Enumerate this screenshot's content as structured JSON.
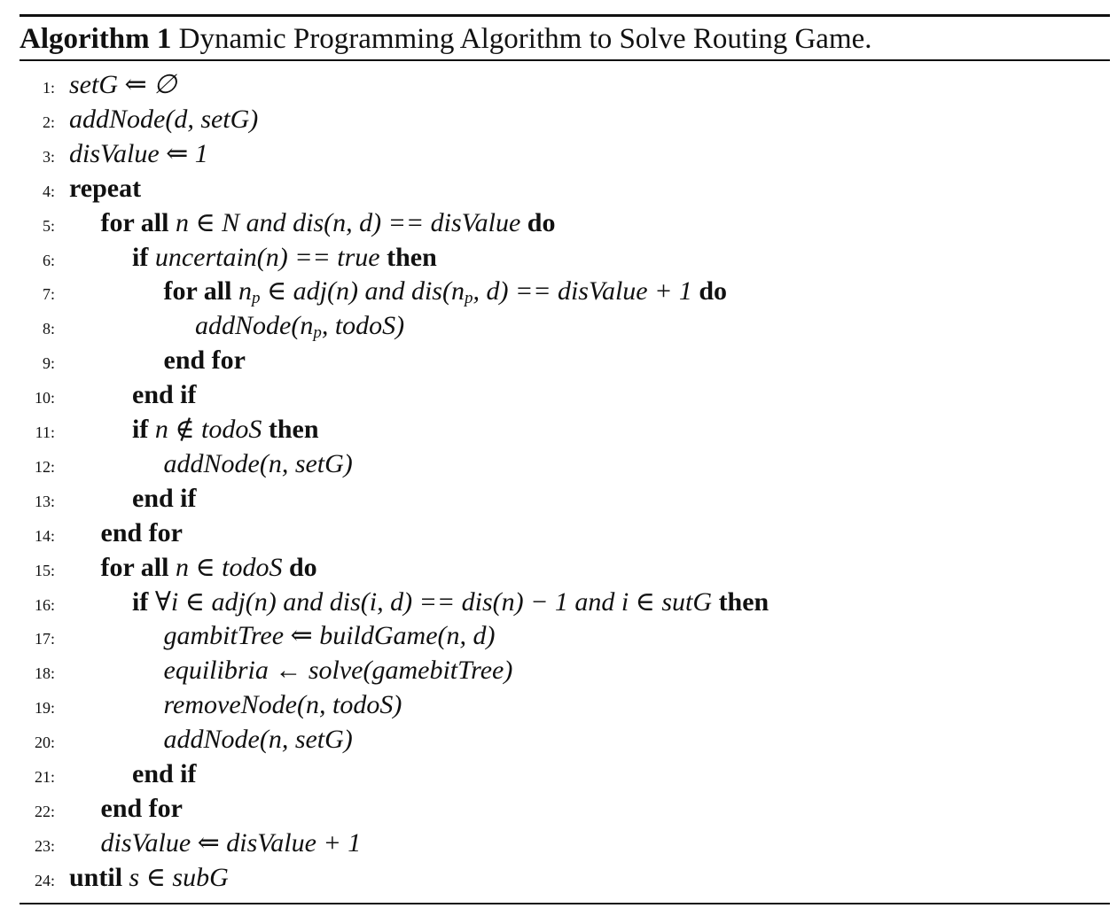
{
  "algorithm": {
    "label": "Algorithm 1",
    "title": "Dynamic Programming Algorithm to Solve Routing Game."
  },
  "lines": [
    {
      "num": "1:",
      "indent": 0,
      "parts": [
        {
          "t": "setG ⇐ ∅",
          "s": "m"
        }
      ]
    },
    {
      "num": "2:",
      "indent": 0,
      "parts": [
        {
          "t": "addNode(d, setG)",
          "s": "m"
        }
      ]
    },
    {
      "num": "3:",
      "indent": 0,
      "parts": [
        {
          "t": "disValue ⇐ 1",
          "s": "m"
        }
      ]
    },
    {
      "num": "4:",
      "indent": 0,
      "parts": [
        {
          "t": "repeat",
          "s": "kw"
        }
      ]
    },
    {
      "num": "5:",
      "indent": 1,
      "parts": [
        {
          "t": "for all",
          "s": "kw"
        },
        {
          "t": " n ∈ N  and  dis(n, d) == disValue ",
          "s": "m"
        },
        {
          "t": "do",
          "s": "kw"
        }
      ]
    },
    {
      "num": "6:",
      "indent": 2,
      "parts": [
        {
          "t": "if",
          "s": "kw"
        },
        {
          "t": " uncertain(n) == true ",
          "s": "m"
        },
        {
          "t": "then",
          "s": "kw"
        }
      ]
    },
    {
      "num": "7:",
      "indent": 3,
      "parts": [
        {
          "t": "for all",
          "s": "kw"
        },
        {
          "t": " n",
          "s": "m"
        },
        {
          "t": "p",
          "s": "sub"
        },
        {
          "t": " ∈ adj(n)  and  dis(n",
          "s": "m"
        },
        {
          "t": "p",
          "s": "sub"
        },
        {
          "t": ", d) == disValue + 1 ",
          "s": "m"
        },
        {
          "t": "do",
          "s": "kw"
        }
      ]
    },
    {
      "num": "8:",
      "indent": 4,
      "parts": [
        {
          "t": "addNode(n",
          "s": "m"
        },
        {
          "t": "p",
          "s": "sub"
        },
        {
          "t": ", todoS)",
          "s": "m"
        }
      ]
    },
    {
      "num": "9:",
      "indent": 3,
      "parts": [
        {
          "t": "end for",
          "s": "kw"
        }
      ]
    },
    {
      "num": "10:",
      "indent": 2,
      "parts": [
        {
          "t": "end if",
          "s": "kw"
        }
      ]
    },
    {
      "num": "11:",
      "indent": 2,
      "parts": [
        {
          "t": "if",
          "s": "kw"
        },
        {
          "t": " n ∉ todoS ",
          "s": "m"
        },
        {
          "t": "then",
          "s": "kw"
        }
      ]
    },
    {
      "num": "12:",
      "indent": 3,
      "parts": [
        {
          "t": "addNode(n, setG)",
          "s": "m"
        }
      ]
    },
    {
      "num": "13:",
      "indent": 2,
      "parts": [
        {
          "t": "end if",
          "s": "kw"
        }
      ]
    },
    {
      "num": "14:",
      "indent": 1,
      "parts": [
        {
          "t": "end for",
          "s": "kw"
        }
      ]
    },
    {
      "num": "15:",
      "indent": 1,
      "parts": [
        {
          "t": "for all",
          "s": "kw"
        },
        {
          "t": " n ∈ todoS ",
          "s": "m"
        },
        {
          "t": "do",
          "s": "kw"
        }
      ]
    },
    {
      "num": "16:",
      "indent": 2,
      "parts": [
        {
          "t": "if",
          "s": "kw"
        },
        {
          "t": " ∀i ∈ adj(n) and dis(i, d) == dis(n) − 1 and i ∈ sutG ",
          "s": "m"
        },
        {
          "t": "then",
          "s": "kw"
        }
      ]
    },
    {
      "num": "17:",
      "indent": 3,
      "parts": [
        {
          "t": "gambitTree ⇐ buildGame(n, d)",
          "s": "m"
        }
      ]
    },
    {
      "num": "18:",
      "indent": 3,
      "parts": [
        {
          "t": "equilibria ← solve(gamebitTree)",
          "s": "m"
        }
      ]
    },
    {
      "num": "19:",
      "indent": 3,
      "parts": [
        {
          "t": "removeNode(n, todoS)",
          "s": "m"
        }
      ]
    },
    {
      "num": "20:",
      "indent": 3,
      "parts": [
        {
          "t": "addNode(n, setG)",
          "s": "m"
        }
      ]
    },
    {
      "num": "21:",
      "indent": 2,
      "parts": [
        {
          "t": "end if",
          "s": "kw"
        }
      ]
    },
    {
      "num": "22:",
      "indent": 1,
      "parts": [
        {
          "t": "end for",
          "s": "kw"
        }
      ]
    },
    {
      "num": "23:",
      "indent": 1,
      "parts": [
        {
          "t": "disValue ⇐ disValue + 1",
          "s": "m"
        }
      ]
    },
    {
      "num": "24:",
      "indent": 0,
      "parts": [
        {
          "t": "until",
          "s": "kw"
        },
        {
          "t": " s ∈ subG",
          "s": "m"
        }
      ]
    }
  ]
}
